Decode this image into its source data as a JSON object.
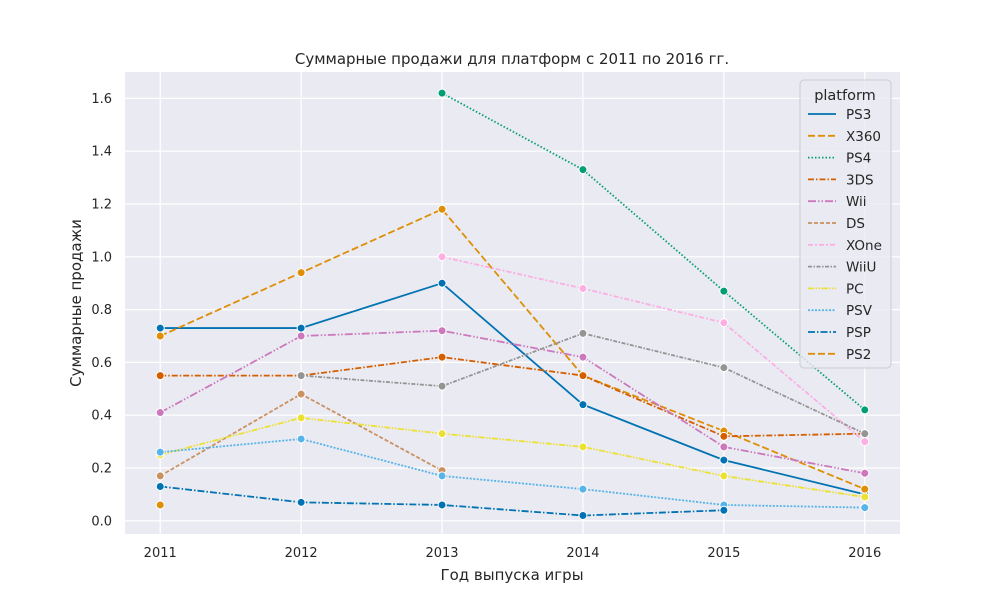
{
  "chart_data": {
    "type": "line",
    "title": "Суммарные продажи для платформ с 2011 по 2016 гг.",
    "xlabel": "Год выпуска игры",
    "ylabel": "Суммарные продажи",
    "x": [
      2011,
      2012,
      2013,
      2014,
      2015,
      2016
    ],
    "xlim": [
      2010.75,
      2016.25
    ],
    "ylim": [
      -0.05,
      1.7
    ],
    "yticks": [
      0.0,
      0.2,
      0.4,
      0.6,
      0.8,
      1.0,
      1.2,
      1.4,
      1.6
    ],
    "ytick_labels": [
      "0.0",
      "0.2",
      "0.4",
      "0.6",
      "0.8",
      "1.0",
      "1.2",
      "1.4",
      "1.6"
    ],
    "xtick_labels": [
      "2011",
      "2012",
      "2013",
      "2014",
      "2015",
      "2016"
    ],
    "grid": true,
    "legend": {
      "title": "platform",
      "placement": "top-right"
    },
    "series": [
      {
        "name": "PS3",
        "color": "#0173b2",
        "dash": "solid",
        "values": [
          0.73,
          0.73,
          0.9,
          0.44,
          0.23,
          0.1
        ]
      },
      {
        "name": "X360",
        "color": "#de8f05",
        "dash": "dashed",
        "values": [
          0.7,
          0.94,
          1.18,
          0.55,
          0.34,
          0.12
        ]
      },
      {
        "name": "PS4",
        "color": "#029e73",
        "dash": "dotted",
        "values": [
          null,
          null,
          1.62,
          1.33,
          0.87,
          0.42
        ]
      },
      {
        "name": "3DS",
        "color": "#d55e00",
        "dash": "dashdot",
        "values": [
          0.55,
          0.55,
          0.62,
          0.55,
          0.32,
          0.33
        ]
      },
      {
        "name": "Wii",
        "color": "#cc78bc",
        "dash": "longdashdot",
        "values": [
          0.41,
          0.7,
          0.72,
          0.62,
          0.28,
          0.18
        ]
      },
      {
        "name": "DS",
        "color": "#ca9161",
        "dash": "shortdash",
        "values": [
          0.17,
          0.48,
          0.19,
          null,
          null,
          null
        ]
      },
      {
        "name": "XOne",
        "color": "#fbafe4",
        "dash": "dashdot2",
        "values": [
          null,
          null,
          1.0,
          0.88,
          0.75,
          0.3
        ]
      },
      {
        "name": "WiiU",
        "color": "#949494",
        "dash": "dashdot3",
        "values": [
          null,
          0.55,
          0.51,
          0.71,
          0.58,
          0.33
        ]
      },
      {
        "name": "PC",
        "color": "#ece133",
        "dash": "dashdotdot",
        "values": [
          0.25,
          0.39,
          0.33,
          0.28,
          0.17,
          0.09
        ]
      },
      {
        "name": "PSV",
        "color": "#56b4e9",
        "dash": "densedot",
        "values": [
          0.26,
          0.31,
          0.17,
          0.12,
          0.06,
          0.05
        ]
      },
      {
        "name": "PSP",
        "color": "#0173b2",
        "dash": "longdash",
        "values": [
          0.13,
          0.07,
          0.06,
          0.02,
          0.04,
          null
        ]
      },
      {
        "name": "PS2",
        "color": "#de8f05",
        "dash": "dashed",
        "values": [
          0.06,
          null,
          null,
          null,
          null,
          null
        ]
      }
    ]
  }
}
